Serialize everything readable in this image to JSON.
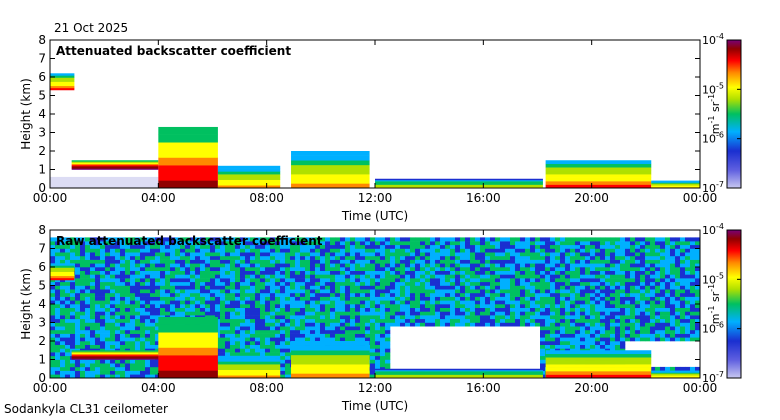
{
  "date": "21 Oct 2025",
  "station": "Sodankyla CL31 ceilometer",
  "colors": {
    "colormap": [
      "#c8c8f0",
      "#1a2fd0",
      "#00b0ff",
      "#00c060",
      "#b0e000",
      "#ffff00",
      "#ff8800",
      "#ff0000",
      "#900000",
      "#780078"
    ],
    "frame": "#000000"
  },
  "chart_data": [
    {
      "type": "heatmap",
      "title": "Attenuated backscatter coefficient",
      "xlabel": "Time (UTC)",
      "ylabel": "Height (km)",
      "x_ticks": [
        "00:00",
        "04:00",
        "08:00",
        "12:00",
        "16:00",
        "20:00",
        "00:00"
      ],
      "x_range_hours": [
        0,
        24
      ],
      "y_ticks": [
        "0",
        "1",
        "2",
        "3",
        "4",
        "5",
        "6",
        "7",
        "8"
      ],
      "ylim_km": [
        0,
        8
      ],
      "colorbar": {
        "label": "m-1 sr-1",
        "scale": "log",
        "ticks": [
          "10-4",
          "10-5",
          "10-6",
          "10-7"
        ],
        "range_log10": [
          -7,
          -4
        ]
      },
      "features": [
        {
          "name": "low cloud layer",
          "start_h": 0.0,
          "end_h": 0.9,
          "base_km": 5.3,
          "top_km": 6.2,
          "intensity": 0.7
        },
        {
          "name": "boundary layer",
          "start_h": 0.8,
          "end_h": 4.0,
          "base_km": 1.0,
          "top_km": 1.5,
          "intensity": 0.95
        },
        {
          "name": "thick cloud",
          "start_h": 4.0,
          "end_h": 6.2,
          "base_km": 0.0,
          "top_km": 3.3,
          "intensity": 0.85
        },
        {
          "name": "cloud",
          "start_h": 6.2,
          "end_h": 8.5,
          "base_km": 0.0,
          "top_km": 1.2,
          "intensity": 0.6
        },
        {
          "name": "cloud",
          "start_h": 8.9,
          "end_h": 11.8,
          "base_km": 0.0,
          "top_km": 2.0,
          "intensity": 0.65
        },
        {
          "name": "low layer",
          "start_h": 12.0,
          "end_h": 18.2,
          "base_km": 0.0,
          "top_km": 0.5,
          "intensity": 0.5
        },
        {
          "name": "cloud",
          "start_h": 18.3,
          "end_h": 22.2,
          "base_km": 0.0,
          "top_km": 1.5,
          "intensity": 0.7
        },
        {
          "name": "low layer",
          "start_h": 22.2,
          "end_h": 24.0,
          "base_km": 0.0,
          "top_km": 0.4,
          "intensity": 0.6
        }
      ]
    },
    {
      "type": "heatmap",
      "title": "Raw attenuated backscatter coefficient",
      "xlabel": "Time (UTC)",
      "ylabel": "Height (km)",
      "x_ticks": [
        "00:00",
        "04:00",
        "08:00",
        "12:00",
        "16:00",
        "20:00",
        "00:00"
      ],
      "x_range_hours": [
        0,
        24
      ],
      "y_ticks": [
        "0",
        "1",
        "2",
        "3",
        "4",
        "5",
        "6",
        "7",
        "8"
      ],
      "ylim_km": [
        0,
        8
      ],
      "colorbar": {
        "label": "m-1 sr-1",
        "scale": "log",
        "ticks": [
          "10-4",
          "10-5",
          "10-6",
          "10-7"
        ],
        "range_log10": [
          -7,
          -4
        ]
      },
      "background": "noise over full column (0-7.6 km)",
      "features": [
        {
          "name": "low cloud layer",
          "start_h": 0.0,
          "end_h": 0.9,
          "base_km": 5.3,
          "top_km": 6.2,
          "intensity": 0.7
        },
        {
          "name": "boundary layer",
          "start_h": 0.8,
          "end_h": 4.0,
          "base_km": 1.0,
          "top_km": 1.5,
          "intensity": 0.95
        },
        {
          "name": "thick cloud",
          "start_h": 4.0,
          "end_h": 6.2,
          "base_km": 0.0,
          "top_km": 3.3,
          "intensity": 0.85
        },
        {
          "name": "cloud",
          "start_h": 6.2,
          "end_h": 8.5,
          "base_km": 0.0,
          "top_km": 1.2,
          "intensity": 0.6
        },
        {
          "name": "cloud",
          "start_h": 8.9,
          "end_h": 11.8,
          "base_km": 0.0,
          "top_km": 2.0,
          "intensity": 0.65
        },
        {
          "name": "low layer",
          "start_h": 12.0,
          "end_h": 18.2,
          "base_km": 0.0,
          "top_km": 0.5,
          "intensity": 0.5
        },
        {
          "name": "cloud",
          "start_h": 18.3,
          "end_h": 22.2,
          "base_km": 0.0,
          "top_km": 1.5,
          "intensity": 0.7
        },
        {
          "name": "low layer",
          "start_h": 22.2,
          "end_h": 24.0,
          "base_km": 0.0,
          "top_km": 0.4,
          "intensity": 0.6
        }
      ],
      "gaps": [
        {
          "start_h": 12.5,
          "end_h": 18.0,
          "base_km": 0.4,
          "top_km": 2.8
        },
        {
          "start_h": 21.2,
          "end_h": 24.0,
          "base_km": 0.5,
          "top_km": 2.0
        }
      ]
    }
  ]
}
